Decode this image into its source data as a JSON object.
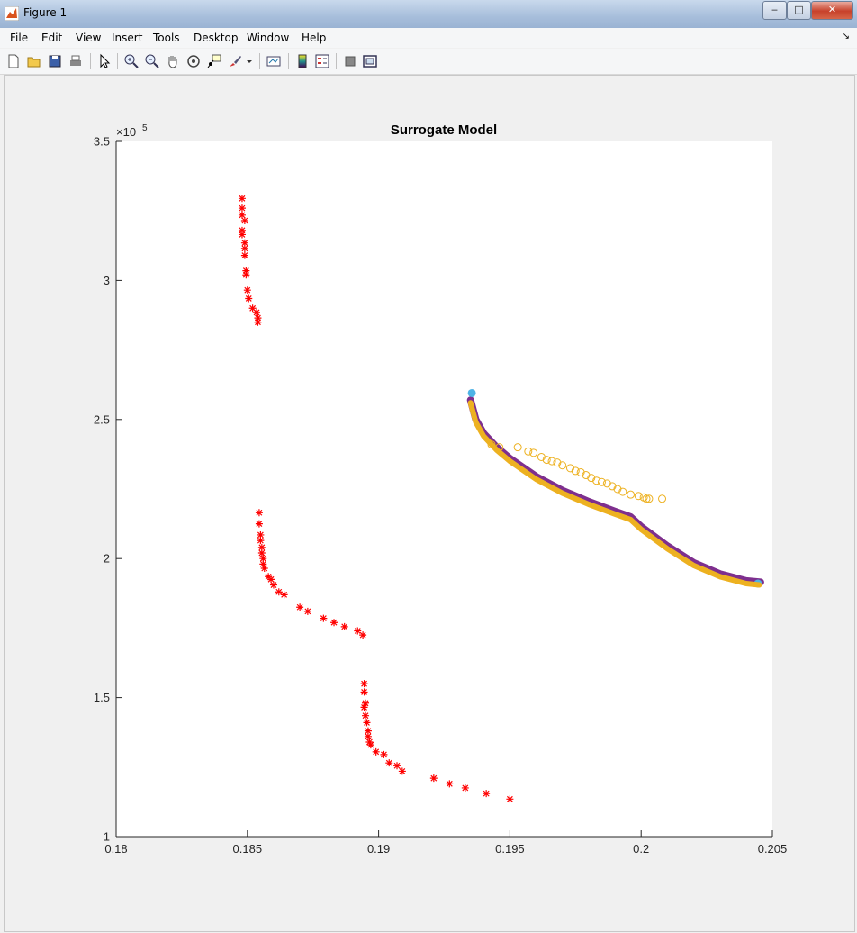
{
  "window": {
    "title": "Figure 1",
    "minimize": "‒",
    "maximize": "□",
    "close": "✕"
  },
  "menu": [
    "File",
    "Edit",
    "View",
    "Insert",
    "Tools",
    "Desktop",
    "Window",
    "Help"
  ],
  "menu_overflow": "↘",
  "toolbar": [
    "new-figure-icon",
    "open-file-icon",
    "save-icon",
    "print-icon",
    "pointer-icon",
    "zoom-in-icon",
    "zoom-out-icon",
    "pan-icon",
    "rotate-3d-icon",
    "data-cursor-icon",
    "brush-icon",
    "brush-dropdown-icon",
    "link-plot-icon",
    "colorbar-icon",
    "legend-icon",
    "hide-plot-tools-icon",
    "show-plot-tools-icon"
  ],
  "chart_data": {
    "type": "scatter",
    "title": "Surrogate Model",
    "xlabel": "",
    "ylabel": "",
    "xlim": [
      0.18,
      0.205
    ],
    "ylim": [
      100000,
      350000
    ],
    "xticks": [
      "0.18",
      "0.185",
      "0.19",
      "0.195",
      "0.2",
      "0.205"
    ],
    "yticks": [
      "1",
      "1.5",
      "2",
      "2.5",
      "3",
      "3.5"
    ],
    "y_exponent": "×10",
    "y_exponent_power": "5",
    "grid": false,
    "legend": "none",
    "colors": {
      "red_star": "#ff0000",
      "blue": "#4db3e6",
      "orange": "#edb120",
      "purple": "#7e2f8e"
    },
    "series": [
      {
        "marker": "star",
        "color": "#ff0000",
        "points": [
          [
            0.1848,
            329500
          ],
          [
            0.1848,
            326000
          ],
          [
            0.1848,
            323500
          ],
          [
            0.1849,
            321500
          ],
          [
            0.1848,
            318000
          ],
          [
            0.1848,
            316500
          ],
          [
            0.1849,
            313500
          ],
          [
            0.1849,
            311500
          ],
          [
            0.1849,
            309000
          ],
          [
            0.18495,
            303500
          ],
          [
            0.18495,
            302000
          ],
          [
            0.185,
            296500
          ],
          [
            0.18505,
            293500
          ],
          [
            0.1852,
            290000
          ],
          [
            0.18535,
            288500
          ],
          [
            0.1854,
            286500
          ],
          [
            0.1854,
            285000
          ],
          [
            0.18545,
            216500
          ],
          [
            0.18545,
            212500
          ],
          [
            0.1855,
            208500
          ],
          [
            0.1855,
            206500
          ],
          [
            0.18555,
            204000
          ],
          [
            0.18555,
            202000
          ],
          [
            0.1856,
            200000
          ],
          [
            0.1856,
            198000
          ],
          [
            0.18565,
            196500
          ],
          [
            0.1858,
            193500
          ],
          [
            0.1859,
            192500
          ],
          [
            0.186,
            190500
          ],
          [
            0.1862,
            188000
          ],
          [
            0.1864,
            187000
          ],
          [
            0.187,
            182500
          ],
          [
            0.1873,
            181000
          ],
          [
            0.1879,
            178500
          ],
          [
            0.1883,
            177000
          ],
          [
            0.1887,
            175500
          ],
          [
            0.1892,
            174000
          ],
          [
            0.1894,
            172500
          ],
          [
            0.18945,
            155000
          ],
          [
            0.18945,
            152000
          ],
          [
            0.1895,
            148000
          ],
          [
            0.18945,
            146500
          ],
          [
            0.1895,
            143500
          ],
          [
            0.18955,
            141000
          ],
          [
            0.1896,
            138000
          ],
          [
            0.1896,
            136000
          ],
          [
            0.18965,
            134000
          ],
          [
            0.1897,
            133000
          ],
          [
            0.1899,
            130500
          ],
          [
            0.1902,
            129500
          ],
          [
            0.1904,
            126500
          ],
          [
            0.1907,
            125500
          ],
          [
            0.1909,
            123500
          ],
          [
            0.1921,
            121000
          ],
          [
            0.1927,
            119000
          ],
          [
            0.1933,
            117500
          ],
          [
            0.1941,
            115500
          ],
          [
            0.195,
            113500
          ]
        ]
      },
      {
        "marker": "line",
        "color": "#7e2f8e",
        "points": [
          [
            0.1935,
            257000
          ],
          [
            0.1937,
            250000
          ],
          [
            0.194,
            245000
          ],
          [
            0.1945,
            240000
          ],
          [
            0.195,
            236000
          ],
          [
            0.196,
            229500
          ],
          [
            0.197,
            224500
          ],
          [
            0.198,
            220500
          ],
          [
            0.199,
            217000
          ],
          [
            0.1996,
            215000
          ],
          [
            0.2,
            211500
          ],
          [
            0.201,
            204500
          ],
          [
            0.202,
            198500
          ],
          [
            0.203,
            194500
          ],
          [
            0.204,
            192000
          ],
          [
            0.20455,
            191500
          ]
        ]
      },
      {
        "marker": "circle",
        "color": "#4db3e6",
        "points": [
          [
            0.19355,
            259500
          ],
          [
            0.20445,
            191000
          ]
        ]
      },
      {
        "marker": "line",
        "color": "#edb120",
        "points": [
          [
            0.1935,
            256000
          ],
          [
            0.1937,
            249000
          ],
          [
            0.194,
            244000
          ],
          [
            0.1945,
            239000
          ],
          [
            0.195,
            235000
          ],
          [
            0.196,
            228500
          ],
          [
            0.197,
            223500
          ],
          [
            0.198,
            219500
          ],
          [
            0.199,
            216000
          ],
          [
            0.1996,
            214000
          ],
          [
            0.2,
            210500
          ],
          [
            0.201,
            203500
          ],
          [
            0.202,
            197500
          ],
          [
            0.203,
            193500
          ],
          [
            0.204,
            191000
          ],
          [
            0.2045,
            190500
          ]
        ]
      },
      {
        "marker": "open-circle",
        "color": "#edb120",
        "points": [
          [
            0.1943,
            241000
          ],
          [
            0.1946,
            240000
          ],
          [
            0.1953,
            240000
          ],
          [
            0.1957,
            238500
          ],
          [
            0.1959,
            238000
          ],
          [
            0.1962,
            236500
          ],
          [
            0.1964,
            235500
          ],
          [
            0.1966,
            235000
          ],
          [
            0.1968,
            234500
          ],
          [
            0.197,
            233500
          ],
          [
            0.1973,
            232500
          ],
          [
            0.1975,
            231500
          ],
          [
            0.1977,
            231000
          ],
          [
            0.1979,
            230000
          ],
          [
            0.1981,
            229000
          ],
          [
            0.1983,
            228000
          ],
          [
            0.1985,
            227500
          ],
          [
            0.1987,
            227000
          ],
          [
            0.1989,
            226000
          ],
          [
            0.1991,
            225000
          ],
          [
            0.1993,
            224000
          ],
          [
            0.1996,
            223000
          ],
          [
            0.1999,
            222500
          ],
          [
            0.2001,
            222000
          ],
          [
            0.2002,
            221500
          ],
          [
            0.2003,
            221500
          ],
          [
            0.2008,
            221500
          ]
        ]
      }
    ]
  }
}
